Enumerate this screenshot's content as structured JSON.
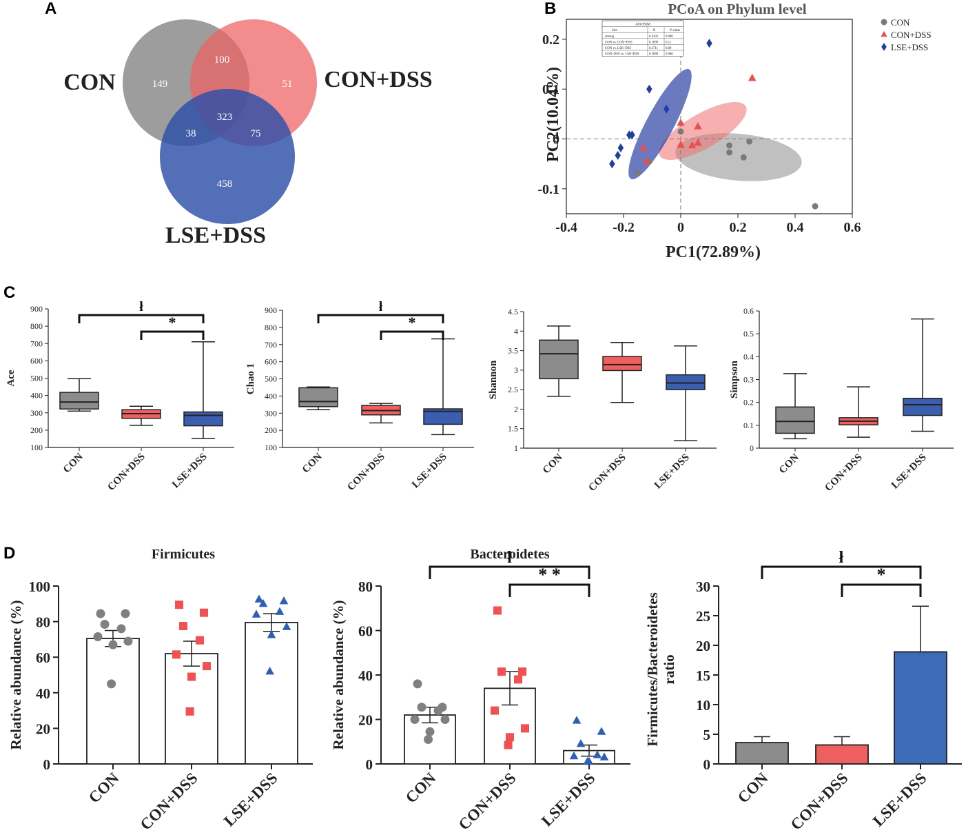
{
  "panel_labels": {
    "a": "A",
    "b": "B",
    "c": "C",
    "d": "D"
  },
  "colors": {
    "con": "#8c8c8c",
    "dss": "#ee5f5f",
    "lse": "#3b5fae"
  },
  "chart_data": [
    {
      "panel": "A",
      "type": "venn",
      "sets": [
        "CON",
        "CON+DSS",
        "LSE+DSS"
      ],
      "regions": {
        "con_only": "149",
        "dss_only": "51",
        "lse_only": "458",
        "con_dss": "100",
        "con_lse": "38",
        "dss_lse": "75",
        "all": "323"
      }
    },
    {
      "panel": "B",
      "type": "scatter",
      "title": "PCoA on Phylum level",
      "xlabel": "PC1(72.89%)",
      "ylabel": "PC2(10.04%)",
      "xlim": [
        -0.4,
        0.6
      ],
      "ylim": [
        -0.15,
        0.24
      ],
      "xticks": [
        "-0.4",
        "-0.2",
        "0",
        "0.2",
        "0.4",
        "0.6"
      ],
      "yticks": [
        "-0.1",
        "0",
        "0.1",
        "0.2"
      ],
      "legend": [
        "CON",
        "CON+DSS",
        "LSE+DSS"
      ],
      "series": [
        {
          "name": "CON",
          "points": [
            [
              0.0,
              0.015
            ],
            [
              0.17,
              -0.013
            ],
            [
              0.17,
              -0.027
            ],
            [
              0.22,
              -0.037
            ],
            [
              0.24,
              -0.005
            ],
            [
              -0.11,
              -0.045
            ],
            [
              -0.15,
              -0.068
            ],
            [
              0.47,
              -0.135
            ]
          ]
        },
        {
          "name": "CON+DSS",
          "points": [
            [
              0.25,
              0.122
            ],
            [
              0.0,
              0.032
            ],
            [
              0.06,
              0.025
            ],
            [
              0.04,
              -0.013
            ],
            [
              0.06,
              -0.008
            ],
            [
              0.0,
              -0.012
            ],
            [
              -0.13,
              -0.018
            ],
            [
              -0.12,
              -0.045
            ]
          ]
        },
        {
          "name": "LSE+DSS",
          "points": [
            [
              0.1,
              0.192
            ],
            [
              -0.11,
              0.1
            ],
            [
              -0.05,
              0.06
            ],
            [
              -0.18,
              0.008
            ],
            [
              -0.17,
              0.008
            ],
            [
              -0.21,
              -0.018
            ],
            [
              -0.22,
              -0.033
            ],
            [
              -0.24,
              -0.05
            ]
          ]
        }
      ],
      "anosim": {
        "title": "ANOSIM",
        "headers": [
          "Site",
          "R",
          "P-value"
        ],
        "rows": [
          [
            "among",
            "0.2432",
            "0.006"
          ],
          [
            "CON vs. CON+DSS",
            "0.1099",
            "0.11"
          ],
          [
            "CON vs. LSE+DSS",
            "0.3711",
            "0.09"
          ],
          [
            "CON+DSS vs. LSE+DSS",
            "0.3069",
            "0.006"
          ]
        ]
      }
    },
    {
      "panel": "C",
      "type": "box",
      "ylabel": "Ace",
      "categories": [
        "CON",
        "CON+DSS",
        "LSE+DSS"
      ],
      "ylim": [
        100,
        900
      ],
      "yticks": [
        100,
        200,
        300,
        400,
        500,
        600,
        700,
        800,
        900
      ],
      "boxes": [
        {
          "min": 310,
          "q1": 322,
          "median": 362,
          "q3": 418,
          "max": 497
        },
        {
          "min": 228,
          "q1": 268,
          "median": 295,
          "q3": 318,
          "max": 338
        },
        {
          "min": 152,
          "q1": 225,
          "median": 285,
          "q3": 305,
          "max": 710
        }
      ],
      "annotations": [
        {
          "from": 0,
          "to": 2,
          "text": "ł"
        },
        {
          "from": 1,
          "to": 2,
          "text": "*"
        }
      ]
    },
    {
      "panel": "C",
      "type": "box",
      "ylabel": "Chao 1",
      "categories": [
        "CON",
        "CON+DSS",
        "LSE+DSS"
      ],
      "ylim": [
        100,
        900
      ],
      "yticks": [
        100,
        200,
        300,
        400,
        500,
        600,
        700,
        800,
        900
      ],
      "boxes": [
        {
          "min": 320,
          "q1": 338,
          "median": 368,
          "q3": 448,
          "max": 453
        },
        {
          "min": 243,
          "q1": 290,
          "median": 315,
          "q3": 345,
          "max": 357
        },
        {
          "min": 175,
          "q1": 235,
          "median": 310,
          "q3": 325,
          "max": 733
        }
      ],
      "annotations": [
        {
          "from": 0,
          "to": 2,
          "text": "ł"
        },
        {
          "from": 1,
          "to": 2,
          "text": "*"
        }
      ]
    },
    {
      "panel": "C",
      "type": "box",
      "ylabel": "Shannon",
      "categories": [
        "CON",
        "CON+DSS",
        "LSE+DSS"
      ],
      "ylim": [
        1,
        4.5
      ],
      "yticks": [
        1,
        1.5,
        2,
        2.5,
        3,
        3.5,
        4,
        4.5
      ],
      "boxes": [
        {
          "min": 2.33,
          "q1": 2.78,
          "median": 3.42,
          "q3": 3.77,
          "max": 4.13
        },
        {
          "min": 2.17,
          "q1": 2.99,
          "median": 3.14,
          "q3": 3.35,
          "max": 3.71
        },
        {
          "min": 1.19,
          "q1": 2.5,
          "median": 2.67,
          "q3": 2.88,
          "max": 3.62
        }
      ],
      "annotations": []
    },
    {
      "panel": "C",
      "type": "box",
      "ylabel": "Simpson",
      "categories": [
        "CON",
        "CON+DSS",
        "LSE+DSS"
      ],
      "ylim": [
        0,
        0.6
      ],
      "yticks": [
        0,
        0.1,
        0.2,
        0.3,
        0.4,
        0.5,
        0.6
      ],
      "boxes": [
        {
          "min": 0.041,
          "q1": 0.065,
          "median": 0.117,
          "q3": 0.18,
          "max": 0.326
        },
        {
          "min": 0.048,
          "q1": 0.102,
          "median": 0.118,
          "q3": 0.133,
          "max": 0.268
        },
        {
          "min": 0.074,
          "q1": 0.143,
          "median": 0.19,
          "q3": 0.218,
          "max": 0.565
        }
      ],
      "annotations": []
    },
    {
      "panel": "D",
      "type": "bar",
      "title": "Firmicutes",
      "ylabel": "Relative abundance (%)",
      "categories": [
        "CON",
        "CON+DSS",
        "LSE+DSS"
      ],
      "ylim": [
        0,
        100
      ],
      "yticks": [
        0,
        20,
        40,
        60,
        80,
        100
      ],
      "filled": false,
      "values": [
        70.5,
        62,
        79.5
      ],
      "errors": [
        4.5,
        7,
        5
      ],
      "points": [
        [
          84.5,
          84.5,
          78.5,
          76,
          71.5,
          69,
          67,
          45
        ],
        [
          89.5,
          85,
          77.5,
          69.5,
          61.5,
          55,
          49,
          29.5
        ],
        [
          92.5,
          91.5,
          90,
          85.5,
          84,
          77,
          72.5,
          52
        ]
      ],
      "annotations": []
    },
    {
      "panel": "D",
      "type": "bar",
      "title": "Bacteroidetes",
      "ylabel": "Relative abundance (%)",
      "categories": [
        "CON",
        "CON+DSS",
        "LSE+DSS"
      ],
      "ylim": [
        0,
        80
      ],
      "yticks": [
        0,
        20,
        40,
        60,
        80
      ],
      "filled": false,
      "values": [
        22,
        34,
        6
      ],
      "errors": [
        3.5,
        7.5,
        2.5
      ],
      "points": [
        [
          36,
          25.5,
          25.5,
          24,
          20,
          20,
          14.5,
          11
        ],
        [
          69,
          41.5,
          41.5,
          38,
          24,
          16,
          12,
          8.5
        ],
        [
          19.5,
          14.5,
          9,
          4,
          3.5,
          3,
          1,
          1
        ]
      ],
      "annotations": [
        {
          "from": 0,
          "to": 2,
          "text": "ł"
        },
        {
          "from": 1,
          "to": 2,
          "text": "* *"
        }
      ]
    },
    {
      "panel": "D",
      "type": "bar",
      "title": "",
      "ylabel": "Firmicutes/Bacteroidetes ratio",
      "ylabel_lines": [
        "Firmicutes/Bacteroidetes",
        "ratio"
      ],
      "categories": [
        "CON",
        "CON+DSS",
        "LSE+DSS"
      ],
      "ylim": [
        0,
        30
      ],
      "yticks": [
        0,
        5,
        10,
        15,
        20,
        25,
        30
      ],
      "filled": true,
      "values": [
        3.6,
        3.2,
        18.9
      ],
      "errors": [
        1.0,
        1.4,
        7.7
      ],
      "points": [],
      "annotations": [
        {
          "from": 0,
          "to": 2,
          "text": "ł"
        },
        {
          "from": 1,
          "to": 2,
          "text": "*"
        }
      ]
    }
  ]
}
